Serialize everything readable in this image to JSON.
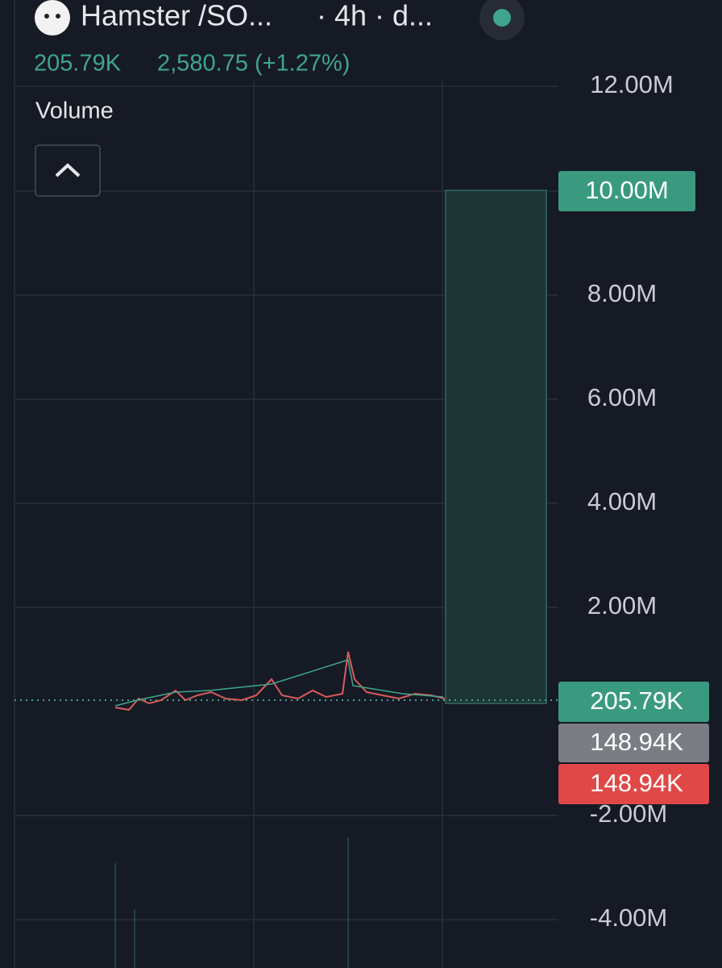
{
  "header": {
    "symbol": "Hamster /SO...",
    "interval": "· 4h · d...",
    "volume": "205.79K",
    "price_change": "2,580.75 (+1.27%)"
  },
  "pane": {
    "title": "Volume"
  },
  "price_axis": {
    "labels": [
      "12.00M",
      "8.00M",
      "6.00M",
      "4.00M",
      "2.00M",
      "-2.00M",
      "-4.00M"
    ]
  },
  "badges": [
    {
      "label": "10.00M"
    },
    {
      "label": "205.79K"
    },
    {
      "label": "148.94K"
    },
    {
      "label": "148.94K"
    }
  ]
}
